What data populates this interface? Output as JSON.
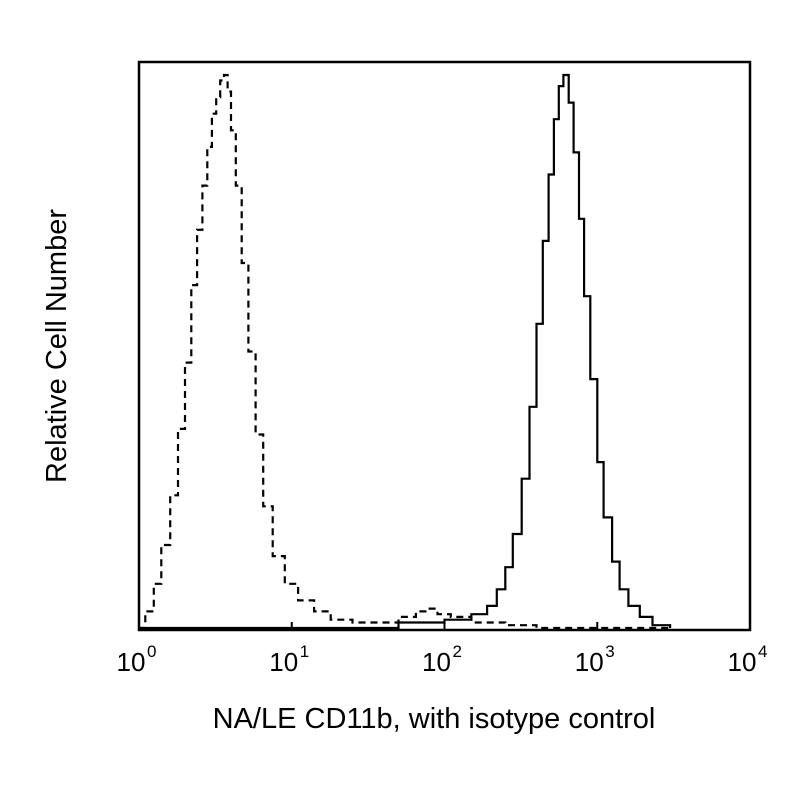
{
  "chart_data": {
    "type": "line",
    "title": "",
    "xlabel": "NA/LE CD11b, with isotype control",
    "ylabel": "Relative Cell Number",
    "x_scale": "log",
    "xlim": [
      1,
      10000
    ],
    "ylim": [
      0,
      1
    ],
    "grid": false,
    "legend": "none",
    "x_ticks": [
      {
        "value": 1,
        "base": "10",
        "exp": "0"
      },
      {
        "value": 10,
        "base": "10",
        "exp": "1"
      },
      {
        "value": 100,
        "base": "10",
        "exp": "2"
      },
      {
        "value": 1000,
        "base": "10",
        "exp": "3"
      },
      {
        "value": 10000,
        "base": "10",
        "exp": "4"
      }
    ],
    "series": [
      {
        "style": "dashed",
        "color": "#000000",
        "x": [
          1,
          1.1,
          1.25,
          1.4,
          1.6,
          1.8,
          2.0,
          2.2,
          2.4,
          2.6,
          2.8,
          3.0,
          3.2,
          3.4,
          3.6,
          3.8,
          4.0,
          4.3,
          4.7,
          5.2,
          5.8,
          6.5,
          7.5,
          9,
          11,
          14,
          18,
          25,
          35,
          50,
          65,
          75,
          90,
          110,
          150,
          250,
          400,
          700,
          1000,
          3000
        ],
        "y": [
          0.0,
          0.03,
          0.08,
          0.15,
          0.24,
          0.36,
          0.48,
          0.62,
          0.72,
          0.8,
          0.87,
          0.93,
          0.96,
          0.99,
          1.0,
          0.97,
          0.9,
          0.8,
          0.66,
          0.5,
          0.35,
          0.22,
          0.13,
          0.08,
          0.05,
          0.03,
          0.015,
          0.01,
          0.01,
          0.02,
          0.03,
          0.035,
          0.025,
          0.02,
          0.01,
          0.005,
          0.0,
          0.0,
          0.0,
          0.0
        ]
      },
      {
        "style": "solid",
        "color": "#000000",
        "x": [
          1,
          10,
          50,
          100,
          150,
          190,
          220,
          250,
          280,
          320,
          360,
          400,
          440,
          480,
          520,
          560,
          600,
          650,
          700,
          760,
          820,
          900,
          1000,
          1100,
          1250,
          1400,
          1600,
          1900,
          2300,
          3000
        ],
        "y": [
          0.0,
          0.0,
          0.01,
          0.015,
          0.025,
          0.04,
          0.07,
          0.11,
          0.17,
          0.27,
          0.4,
          0.55,
          0.7,
          0.82,
          0.92,
          0.98,
          1.0,
          0.95,
          0.86,
          0.74,
          0.6,
          0.45,
          0.3,
          0.2,
          0.12,
          0.07,
          0.04,
          0.02,
          0.005,
          0.0
        ]
      }
    ]
  }
}
